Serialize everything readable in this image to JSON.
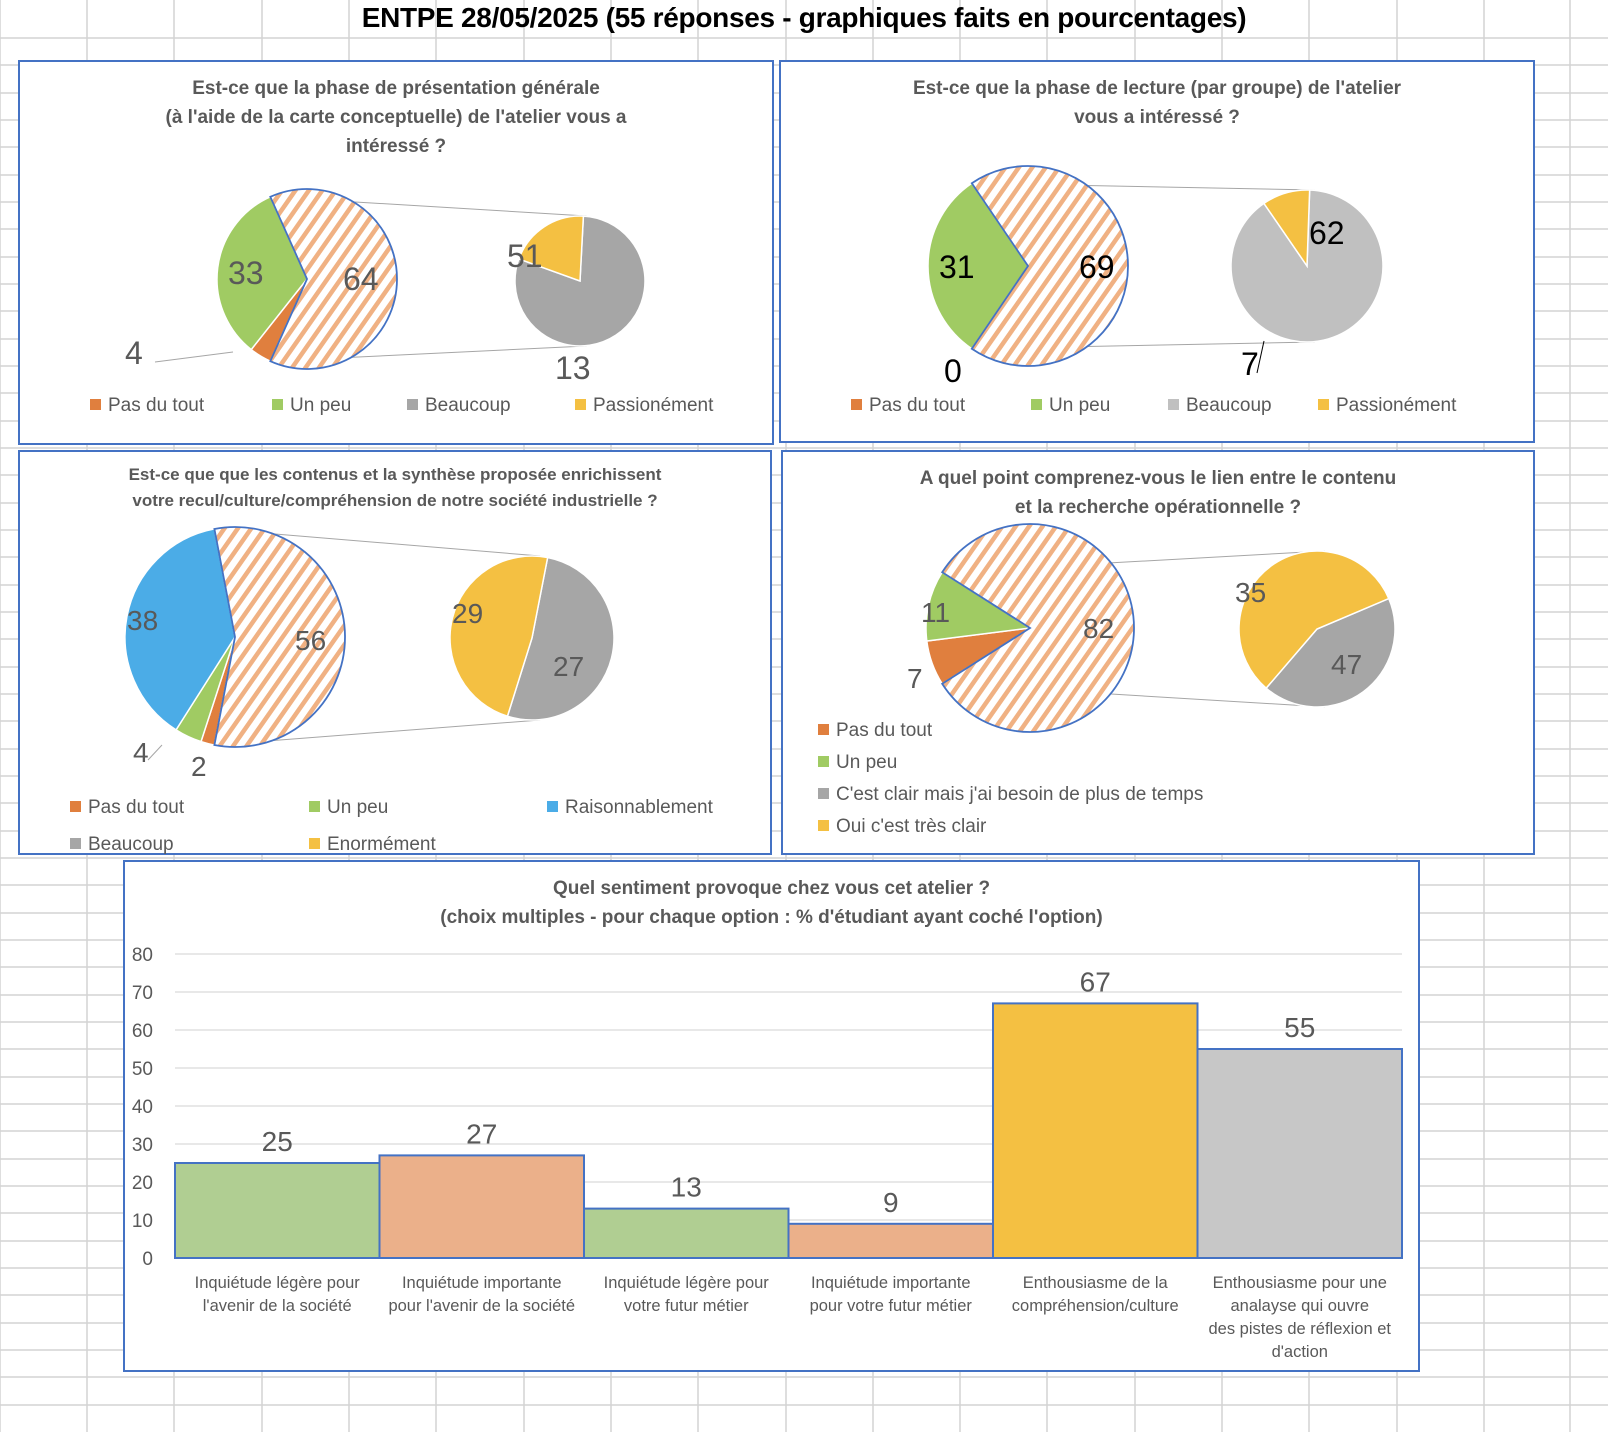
{
  "header": {
    "title": "ENTPE 28/05/2025 (55 réponses - graphiques faits en pourcentages)"
  },
  "colors": {
    "pas_du_tout": "#E07F3E",
    "un_peu": "#A0CB63",
    "beaucoup": "#A6A6A6",
    "beaucoup_light": "#C0C0C0",
    "passionement": "#F4C042",
    "raisonnablement": "#4BACE7",
    "hatch": "#F0B183",
    "border": "#4472C4",
    "bar_green": "#B0CE92",
    "bar_orange": "#EBB08A",
    "bar_yellow": "#F4C042",
    "bar_gray": "#C7C7C7"
  },
  "chart_data": [
    {
      "type": "pie",
      "subtype": "pie-of-pie",
      "title": "Est-ce que la phase de présentation générale\n(à l'aide de la carte conceptuelle) de l'atelier vous a\nintéressé ?",
      "title_lines": [
        "Est-ce que la phase de présentation générale",
        "(à l'aide de la carte conceptuelle) de l'atelier vous a",
        "intéressé ?"
      ],
      "main_slices": [
        {
          "label": "Pas du tout",
          "value": 4
        },
        {
          "label": "Un peu",
          "value": 33
        },
        {
          "label": "Other (Beaucoup + Passionément)",
          "value": 64
        }
      ],
      "secondary_slices": [
        {
          "label": "Beaucoup",
          "value": 51
        },
        {
          "label": "Passionément",
          "value": 13
        }
      ],
      "legend": [
        "Pas du tout",
        "Un peu",
        "Beaucoup",
        "Passionément"
      ],
      "legend_position": "bottom"
    },
    {
      "type": "pie",
      "subtype": "pie-of-pie",
      "title_lines": [
        "Est-ce que la phase de lecture (par groupe) de l'atelier",
        "vous a intéressé ?"
      ],
      "main_slices": [
        {
          "label": "Pas du tout",
          "value": 0
        },
        {
          "label": "Un peu",
          "value": 31
        },
        {
          "label": "Other (Beaucoup + Passionément)",
          "value": 69
        }
      ],
      "secondary_slices": [
        {
          "label": "Beaucoup",
          "value": 62
        },
        {
          "label": "Passionément",
          "value": 7
        }
      ],
      "legend": [
        "Pas du tout",
        "Un peu",
        "Beaucoup",
        "Passionément"
      ],
      "legend_position": "bottom"
    },
    {
      "type": "pie",
      "subtype": "pie-of-pie",
      "title_lines": [
        "Est-ce que que les contenus et la synthèse proposée enrichissent",
        "votre recul/culture/compréhension de notre société industrielle ?"
      ],
      "main_slices": [
        {
          "label": "Pas du tout",
          "value": 2
        },
        {
          "label": "Un peu",
          "value": 4
        },
        {
          "label": "Raisonnablement",
          "value": 38
        },
        {
          "label": "Other (Beaucoup + Enormément)",
          "value": 56
        }
      ],
      "secondary_slices": [
        {
          "label": "Beaucoup",
          "value": 29
        },
        {
          "label": "Enormément",
          "value": 27
        }
      ],
      "legend": [
        "Pas du tout",
        "Un peu",
        "Raisonnablement",
        "Beaucoup",
        "Enormément"
      ],
      "legend_position": "bottom"
    },
    {
      "type": "pie",
      "subtype": "pie-of-pie",
      "title_lines": [
        "A quel point comprenez-vous le lien entre le contenu",
        "et la recherche opérationnelle ?"
      ],
      "main_slices": [
        {
          "label": "Pas du tout",
          "value": 7
        },
        {
          "label": "Un peu",
          "value": 11
        },
        {
          "label": "Other",
          "value": 82
        }
      ],
      "secondary_slices": [
        {
          "label": "C'est clair mais j'ai besoin de plus de temps",
          "value": 35
        },
        {
          "label": "Oui c'est très clair",
          "value": 47
        }
      ],
      "legend": [
        "Pas du tout",
        "Un peu",
        "C'est clair mais j'ai besoin de plus de temps",
        "Oui c'est très clair"
      ],
      "legend_position": "bottom-left"
    },
    {
      "type": "bar",
      "title_lines": [
        "Quel sentiment provoque chez vous cet atelier ?",
        "(choix multiples - pour chaque option : % d'étudiant ayant coché l'option)"
      ],
      "categories": [
        [
          "Inquiétude légère pour",
          "l'avenir de la société"
        ],
        [
          "Inquiétude importante",
          "pour l'avenir de la société"
        ],
        [
          "Inquiétude légère pour",
          "votre futur métier"
        ],
        [
          "Inquiétude importante",
          "pour votre futur métier"
        ],
        [
          "Enthousiasme de la",
          "compréhension/culture"
        ],
        [
          "Enthousiasme pour une",
          "analayse qui ouvre",
          "des pistes de réflexion et",
          "d'action"
        ]
      ],
      "values": [
        25,
        27,
        13,
        9,
        67,
        55
      ],
      "bar_colors": [
        "bar_green",
        "bar_orange",
        "bar_green",
        "bar_orange",
        "bar_yellow",
        "bar_gray"
      ],
      "ylim": [
        0,
        80
      ],
      "yticks": [
        0,
        10,
        20,
        30,
        40,
        50,
        60,
        70,
        80
      ],
      "grid": true,
      "xlabel": "",
      "ylabel": ""
    }
  ]
}
